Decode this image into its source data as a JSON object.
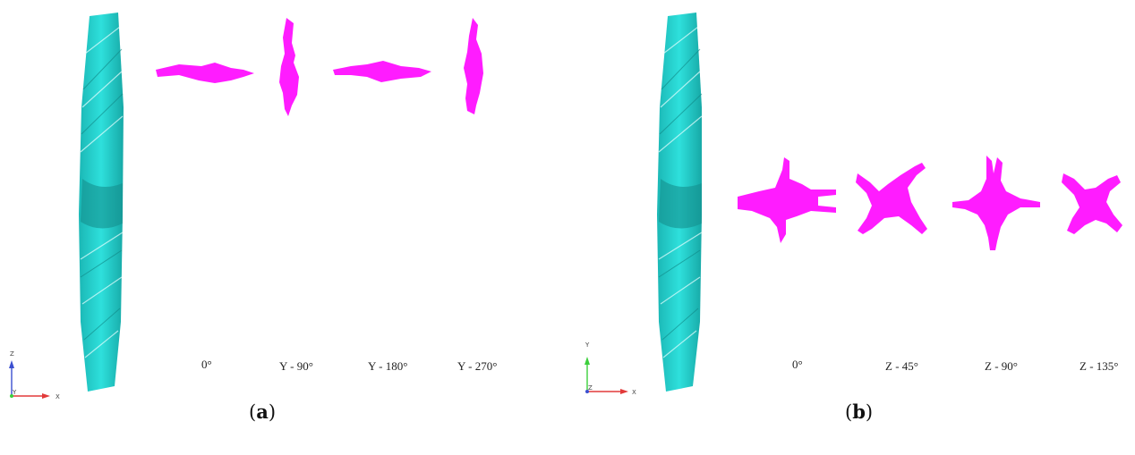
{
  "panel_a": {
    "caption_open": "(",
    "caption_letter": "a",
    "caption_close": ")",
    "angle_labels": [
      "0°",
      "Y - 90°",
      "Y - 180°",
      "Y - 270°"
    ],
    "axis_labels": {
      "vertical": "Z",
      "horizontal": "X",
      "origin": "Y"
    }
  },
  "panel_b": {
    "caption_open": "(",
    "caption_letter": "b",
    "caption_close": ")",
    "angle_labels": [
      "0°",
      "Z - 45°",
      "Z - 90°",
      "Z - 135°"
    ],
    "axis_labels": {
      "vertical": "Y",
      "horizontal": "X",
      "origin": "Z"
    }
  },
  "colors": {
    "blade": "#26d4d0",
    "blade_shadow": "#129a98",
    "body": "#ff1cff",
    "axis_vertical_a": "#3a4fd0",
    "axis_vertical_b": "#3ccf3c",
    "axis_horizontal": "#e23a3a"
  }
}
